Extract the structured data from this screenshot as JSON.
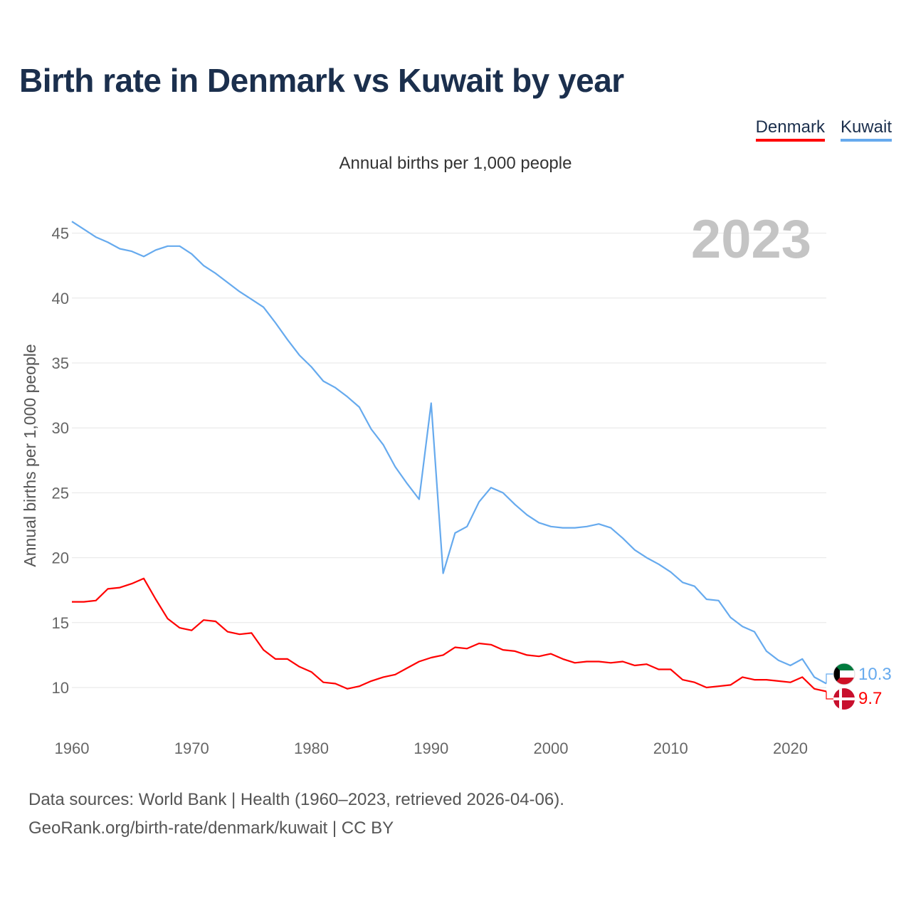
{
  "title": "Birth rate in Denmark vs Kuwait by year",
  "subtitle": "Annual births per 1,000 people",
  "legend": [
    {
      "label": "Denmark",
      "color": "#ff0000"
    },
    {
      "label": "Kuwait",
      "color": "#66aaee"
    }
  ],
  "year_watermark": "2023",
  "source_line1": "Data sources: World Bank | Health (1960–2023, retrieved 2026-04-06).",
  "source_line2": "GeoRank.org/birth-rate/denmark/kuwait | CC BY",
  "flags": [
    {
      "country": "Kuwait",
      "icon": "kuwait-flag-icon",
      "colors": [
        "#007a3d",
        "#ffffff",
        "#ce1126",
        "#000000"
      ]
    },
    {
      "country": "Denmark",
      "icon": "denmark-flag-icon",
      "colors": [
        "#c8102e",
        "#ffffff"
      ]
    }
  ],
  "chart_data": {
    "type": "line",
    "title": "Birth rate in Denmark vs Kuwait by year",
    "xlabel": "",
    "ylabel": "Annual births per 1,000 people",
    "xlim": [
      1960,
      2023
    ],
    "ylim": [
      7.5,
      46.5
    ],
    "x_ticks": [
      1960,
      1970,
      1980,
      1990,
      2000,
      2010,
      2020
    ],
    "y_ticks": [
      10,
      15,
      20,
      25,
      30,
      35,
      40,
      45
    ],
    "grid": true,
    "x": [
      1960,
      1961,
      1962,
      1963,
      1964,
      1965,
      1966,
      1967,
      1968,
      1969,
      1970,
      1971,
      1972,
      1973,
      1974,
      1975,
      1976,
      1977,
      1978,
      1979,
      1980,
      1981,
      1982,
      1983,
      1984,
      1985,
      1986,
      1987,
      1988,
      1989,
      1990,
      1991,
      1992,
      1993,
      1994,
      1995,
      1996,
      1997,
      1998,
      1999,
      2000,
      2001,
      2002,
      2003,
      2004,
      2005,
      2006,
      2007,
      2008,
      2009,
      2010,
      2011,
      2012,
      2013,
      2014,
      2015,
      2016,
      2017,
      2018,
      2019,
      2020,
      2021,
      2022,
      2023
    ],
    "series": [
      {
        "name": "Denmark",
        "color": "#ff0000",
        "end_label": "9.7",
        "values": [
          16.6,
          16.6,
          16.7,
          17.6,
          17.7,
          18.0,
          18.4,
          16.8,
          15.3,
          14.6,
          14.4,
          15.2,
          15.1,
          14.3,
          14.1,
          14.2,
          12.9,
          12.2,
          12.2,
          11.6,
          11.2,
          10.4,
          10.3,
          9.9,
          10.1,
          10.5,
          10.8,
          11.0,
          11.5,
          12.0,
          12.3,
          12.5,
          13.1,
          13.0,
          13.4,
          13.3,
          12.9,
          12.8,
          12.5,
          12.4,
          12.6,
          12.2,
          11.9,
          12.0,
          12.0,
          11.9,
          12.0,
          11.7,
          11.8,
          11.4,
          11.4,
          10.6,
          10.4,
          10.0,
          10.1,
          10.2,
          10.8,
          10.6,
          10.6,
          10.5,
          10.4,
          10.8,
          9.9,
          9.7
        ]
      },
      {
        "name": "Kuwait",
        "color": "#66aaee",
        "end_label": "10.3",
        "values": [
          45.9,
          45.3,
          44.7,
          44.3,
          43.8,
          43.6,
          43.2,
          43.7,
          44.0,
          44.0,
          43.4,
          42.5,
          41.9,
          41.2,
          40.5,
          39.9,
          39.3,
          38.1,
          36.8,
          35.6,
          34.7,
          33.6,
          33.1,
          32.4,
          31.6,
          29.9,
          28.7,
          27.0,
          25.7,
          24.5,
          31.9,
          18.8,
          21.9,
          22.4,
          24.3,
          25.4,
          25.0,
          24.1,
          23.3,
          22.7,
          22.4,
          22.3,
          22.3,
          22.4,
          22.6,
          22.3,
          21.5,
          20.6,
          20.0,
          19.5,
          18.9,
          18.1,
          17.8,
          16.8,
          16.7,
          15.4,
          14.7,
          14.3,
          12.8,
          12.1,
          11.7,
          12.2,
          10.8,
          10.3
        ]
      }
    ]
  }
}
